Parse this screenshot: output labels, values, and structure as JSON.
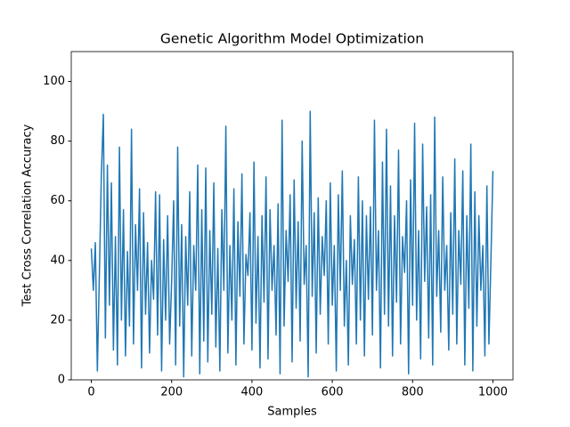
{
  "chart_data": {
    "type": "line",
    "title": "Genetic Algorithm Model Optimization",
    "x_label": "Samples",
    "y_label": "Test Cross Correlation Accuracy",
    "xlim": [
      -50,
      1050
    ],
    "ylim": [
      0,
      110
    ],
    "xticks": [
      0,
      200,
      400,
      600,
      800,
      1000
    ],
    "yticks": [
      0,
      20,
      40,
      60,
      80,
      100
    ],
    "grid": false,
    "series": [
      {
        "color": "#1f77b4",
        "x": [
          0,
          5,
          10,
          15,
          20,
          25,
          30,
          35,
          40,
          45,
          50,
          55,
          60,
          65,
          70,
          75,
          80,
          85,
          90,
          95,
          100,
          105,
          110,
          115,
          120,
          125,
          130,
          135,
          140,
          145,
          150,
          155,
          160,
          165,
          170,
          175,
          180,
          185,
          190,
          195,
          200,
          205,
          210,
          215,
          220,
          225,
          230,
          235,
          240,
          245,
          250,
          255,
          260,
          265,
          270,
          275,
          280,
          285,
          290,
          295,
          300,
          305,
          310,
          315,
          320,
          325,
          330,
          335,
          340,
          345,
          350,
          355,
          360,
          365,
          370,
          375,
          380,
          385,
          390,
          395,
          400,
          405,
          410,
          415,
          420,
          425,
          430,
          435,
          440,
          445,
          450,
          455,
          460,
          465,
          470,
          475,
          480,
          485,
          490,
          495,
          500,
          505,
          510,
          515,
          520,
          525,
          530,
          535,
          540,
          545,
          550,
          555,
          560,
          565,
          570,
          575,
          580,
          585,
          590,
          595,
          600,
          605,
          610,
          615,
          620,
          625,
          630,
          635,
          640,
          645,
          650,
          655,
          660,
          665,
          670,
          675,
          680,
          685,
          690,
          695,
          700,
          705,
          710,
          715,
          720,
          725,
          730,
          735,
          740,
          745,
          750,
          755,
          760,
          765,
          770,
          775,
          780,
          785,
          790,
          795,
          800,
          805,
          810,
          815,
          820,
          825,
          830,
          835,
          840,
          845,
          850,
          855,
          860,
          865,
          870,
          875,
          880,
          885,
          890,
          895,
          900,
          905,
          910,
          915,
          920,
          925,
          930,
          935,
          940,
          945,
          950,
          955,
          960,
          965,
          970,
          975,
          980,
          985,
          990,
          995,
          1000
        ],
        "values": [
          44,
          30,
          46,
          3,
          35,
          69,
          89,
          14,
          72,
          25,
          66,
          10,
          48,
          5,
          78,
          20,
          57,
          8,
          43,
          18,
          84,
          12,
          52,
          30,
          64,
          4,
          56,
          22,
          46,
          9,
          40,
          27,
          63,
          15,
          62,
          3,
          47,
          20,
          55,
          12,
          33,
          60,
          5,
          78,
          18,
          52,
          1,
          48,
          25,
          63,
          8,
          45,
          30,
          72,
          2,
          57,
          13,
          71,
          6,
          50,
          22,
          66,
          11,
          44,
          3,
          57,
          30,
          85,
          9,
          45,
          20,
          64,
          5,
          53,
          28,
          69,
          12,
          42,
          35,
          56,
          10,
          73,
          19,
          48,
          4,
          55,
          26,
          68,
          7,
          57,
          30,
          45,
          15,
          59,
          2,
          87,
          18,
          50,
          33,
          62,
          6,
          67,
          24,
          53,
          13,
          80,
          32,
          45,
          1,
          90,
          28,
          56,
          9,
          61,
          22,
          48,
          35,
          60,
          12,
          66,
          25,
          45,
          3,
          62,
          30,
          70,
          18,
          40,
          5,
          55,
          32,
          47,
          12,
          68,
          20,
          60,
          8,
          55,
          27,
          58,
          15,
          87,
          30,
          50,
          4,
          73,
          22,
          84,
          18,
          65,
          8,
          55,
          26,
          77,
          12,
          48,
          36,
          60,
          2,
          67,
          25,
          86,
          20,
          50,
          7,
          79,
          33,
          58,
          14,
          62,
          5,
          88,
          28,
          50,
          16,
          68,
          30,
          45,
          10,
          56,
          22,
          74,
          12,
          50,
          32,
          70,
          5,
          55,
          24,
          79,
          3,
          63,
          18,
          55,
          30,
          45,
          8,
          65,
          12,
          40,
          70
        ]
      }
    ]
  }
}
